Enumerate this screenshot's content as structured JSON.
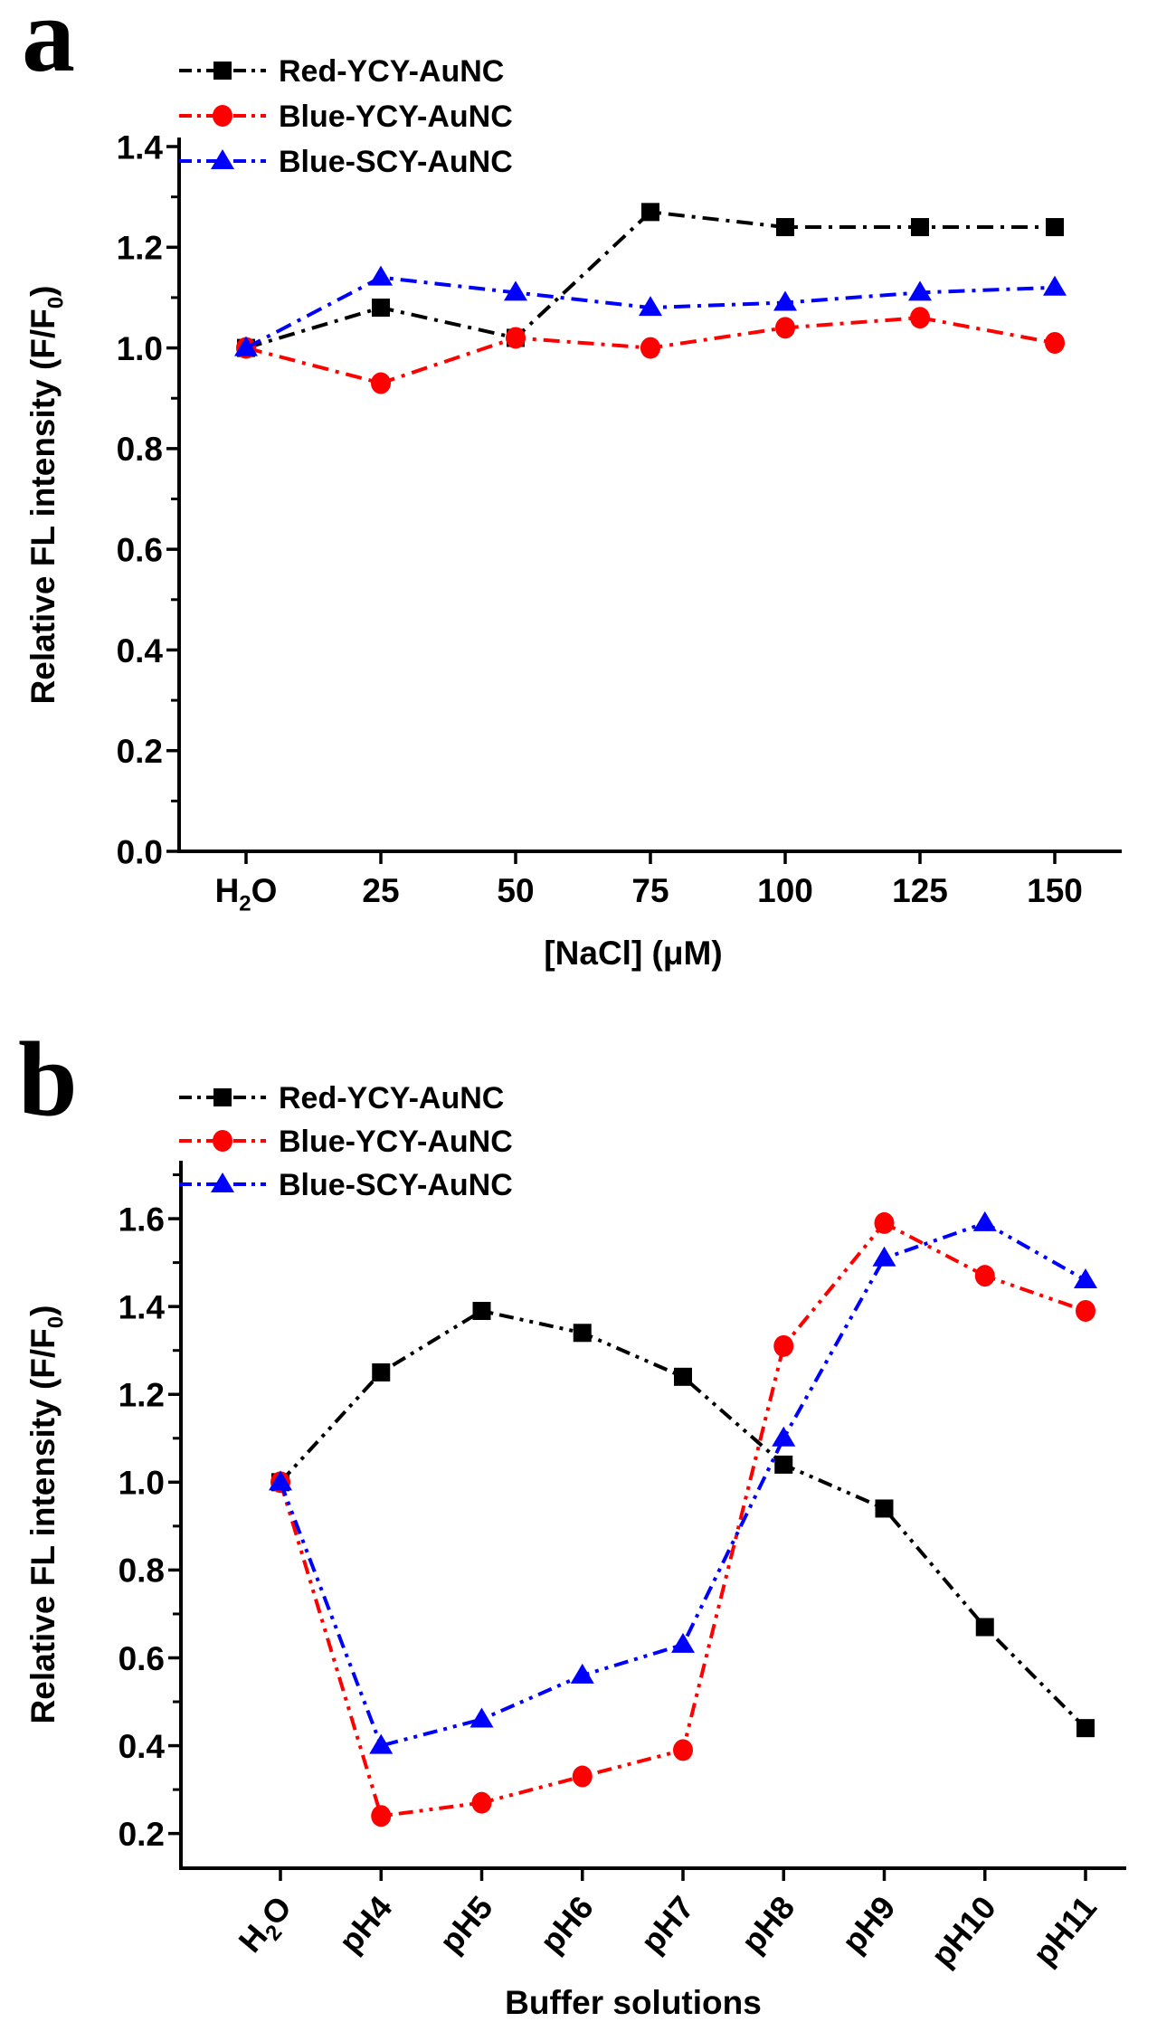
{
  "figure": {
    "background": "#ffffff",
    "series_colors": {
      "black": "#000000",
      "red": "#ff0000",
      "blue": "#0000ff"
    }
  },
  "chart_data": [
    {
      "panel_label": "a",
      "type": "line",
      "categories": [
        "H2O",
        "25",
        "50",
        "75",
        "100",
        "125",
        "150"
      ],
      "xlabel": "[NaCl] (μM)",
      "ylabel": "Relative FL intensity (F/F0)",
      "ylim": [
        0.0,
        1.42
      ],
      "yticks": [
        0.0,
        0.2,
        0.4,
        0.6,
        0.8,
        1.0,
        1.2,
        1.4
      ],
      "grid": false,
      "legend_position": "top-left",
      "xlabel_rotation": 0,
      "series": [
        {
          "name": "Red-YCY-AuNC",
          "color": "#000000",
          "marker": "square",
          "line_style": "dash-dot",
          "values": [
            1.0,
            1.08,
            1.02,
            1.27,
            1.24,
            1.24,
            1.24
          ]
        },
        {
          "name": "Blue-YCY-AuNC",
          "color": "#ff0000",
          "marker": "circle",
          "line_style": "dash-dot",
          "values": [
            1.0,
            0.93,
            1.02,
            1.0,
            1.04,
            1.06,
            1.01
          ]
        },
        {
          "name": "Blue-SCY-AuNC",
          "color": "#0000ff",
          "marker": "triangle",
          "line_style": "dash-dot",
          "values": [
            1.0,
            1.14,
            1.11,
            1.08,
            1.09,
            1.11,
            1.12
          ]
        }
      ]
    },
    {
      "panel_label": "b",
      "type": "line",
      "categories": [
        "H2O",
        "pH4",
        "pH5",
        "pH6",
        "pH7",
        "pH8",
        "pH9",
        "pH10",
        "pH11"
      ],
      "xlabel": "Buffer solutions",
      "ylabel": "Relative FL intensity (F/F0)",
      "ylim": [
        0.12,
        1.73
      ],
      "yticks": [
        0.2,
        0.4,
        0.6,
        0.8,
        1.0,
        1.2,
        1.4,
        1.6
      ],
      "grid": false,
      "legend_position": "top-left",
      "xlabel_rotation": -50,
      "series": [
        {
          "name": "Red-YCY-AuNC",
          "color": "#000000",
          "marker": "square",
          "line_style": "dash-dot-dot",
          "values": [
            1.0,
            1.25,
            1.39,
            1.34,
            1.24,
            1.04,
            0.94,
            0.67,
            0.44
          ]
        },
        {
          "name": "Blue-YCY-AuNC",
          "color": "#ff0000",
          "marker": "circle",
          "line_style": "dash-dot-dot",
          "values": [
            1.0,
            0.24,
            0.27,
            0.33,
            0.39,
            1.31,
            1.59,
            1.47,
            1.39
          ]
        },
        {
          "name": "Blue-SCY-AuNC",
          "color": "#0000ff",
          "marker": "triangle",
          "line_style": "dash-dot-dot",
          "values": [
            1.0,
            0.4,
            0.46,
            0.56,
            0.63,
            1.1,
            1.51,
            1.59,
            1.46
          ]
        }
      ]
    }
  ]
}
